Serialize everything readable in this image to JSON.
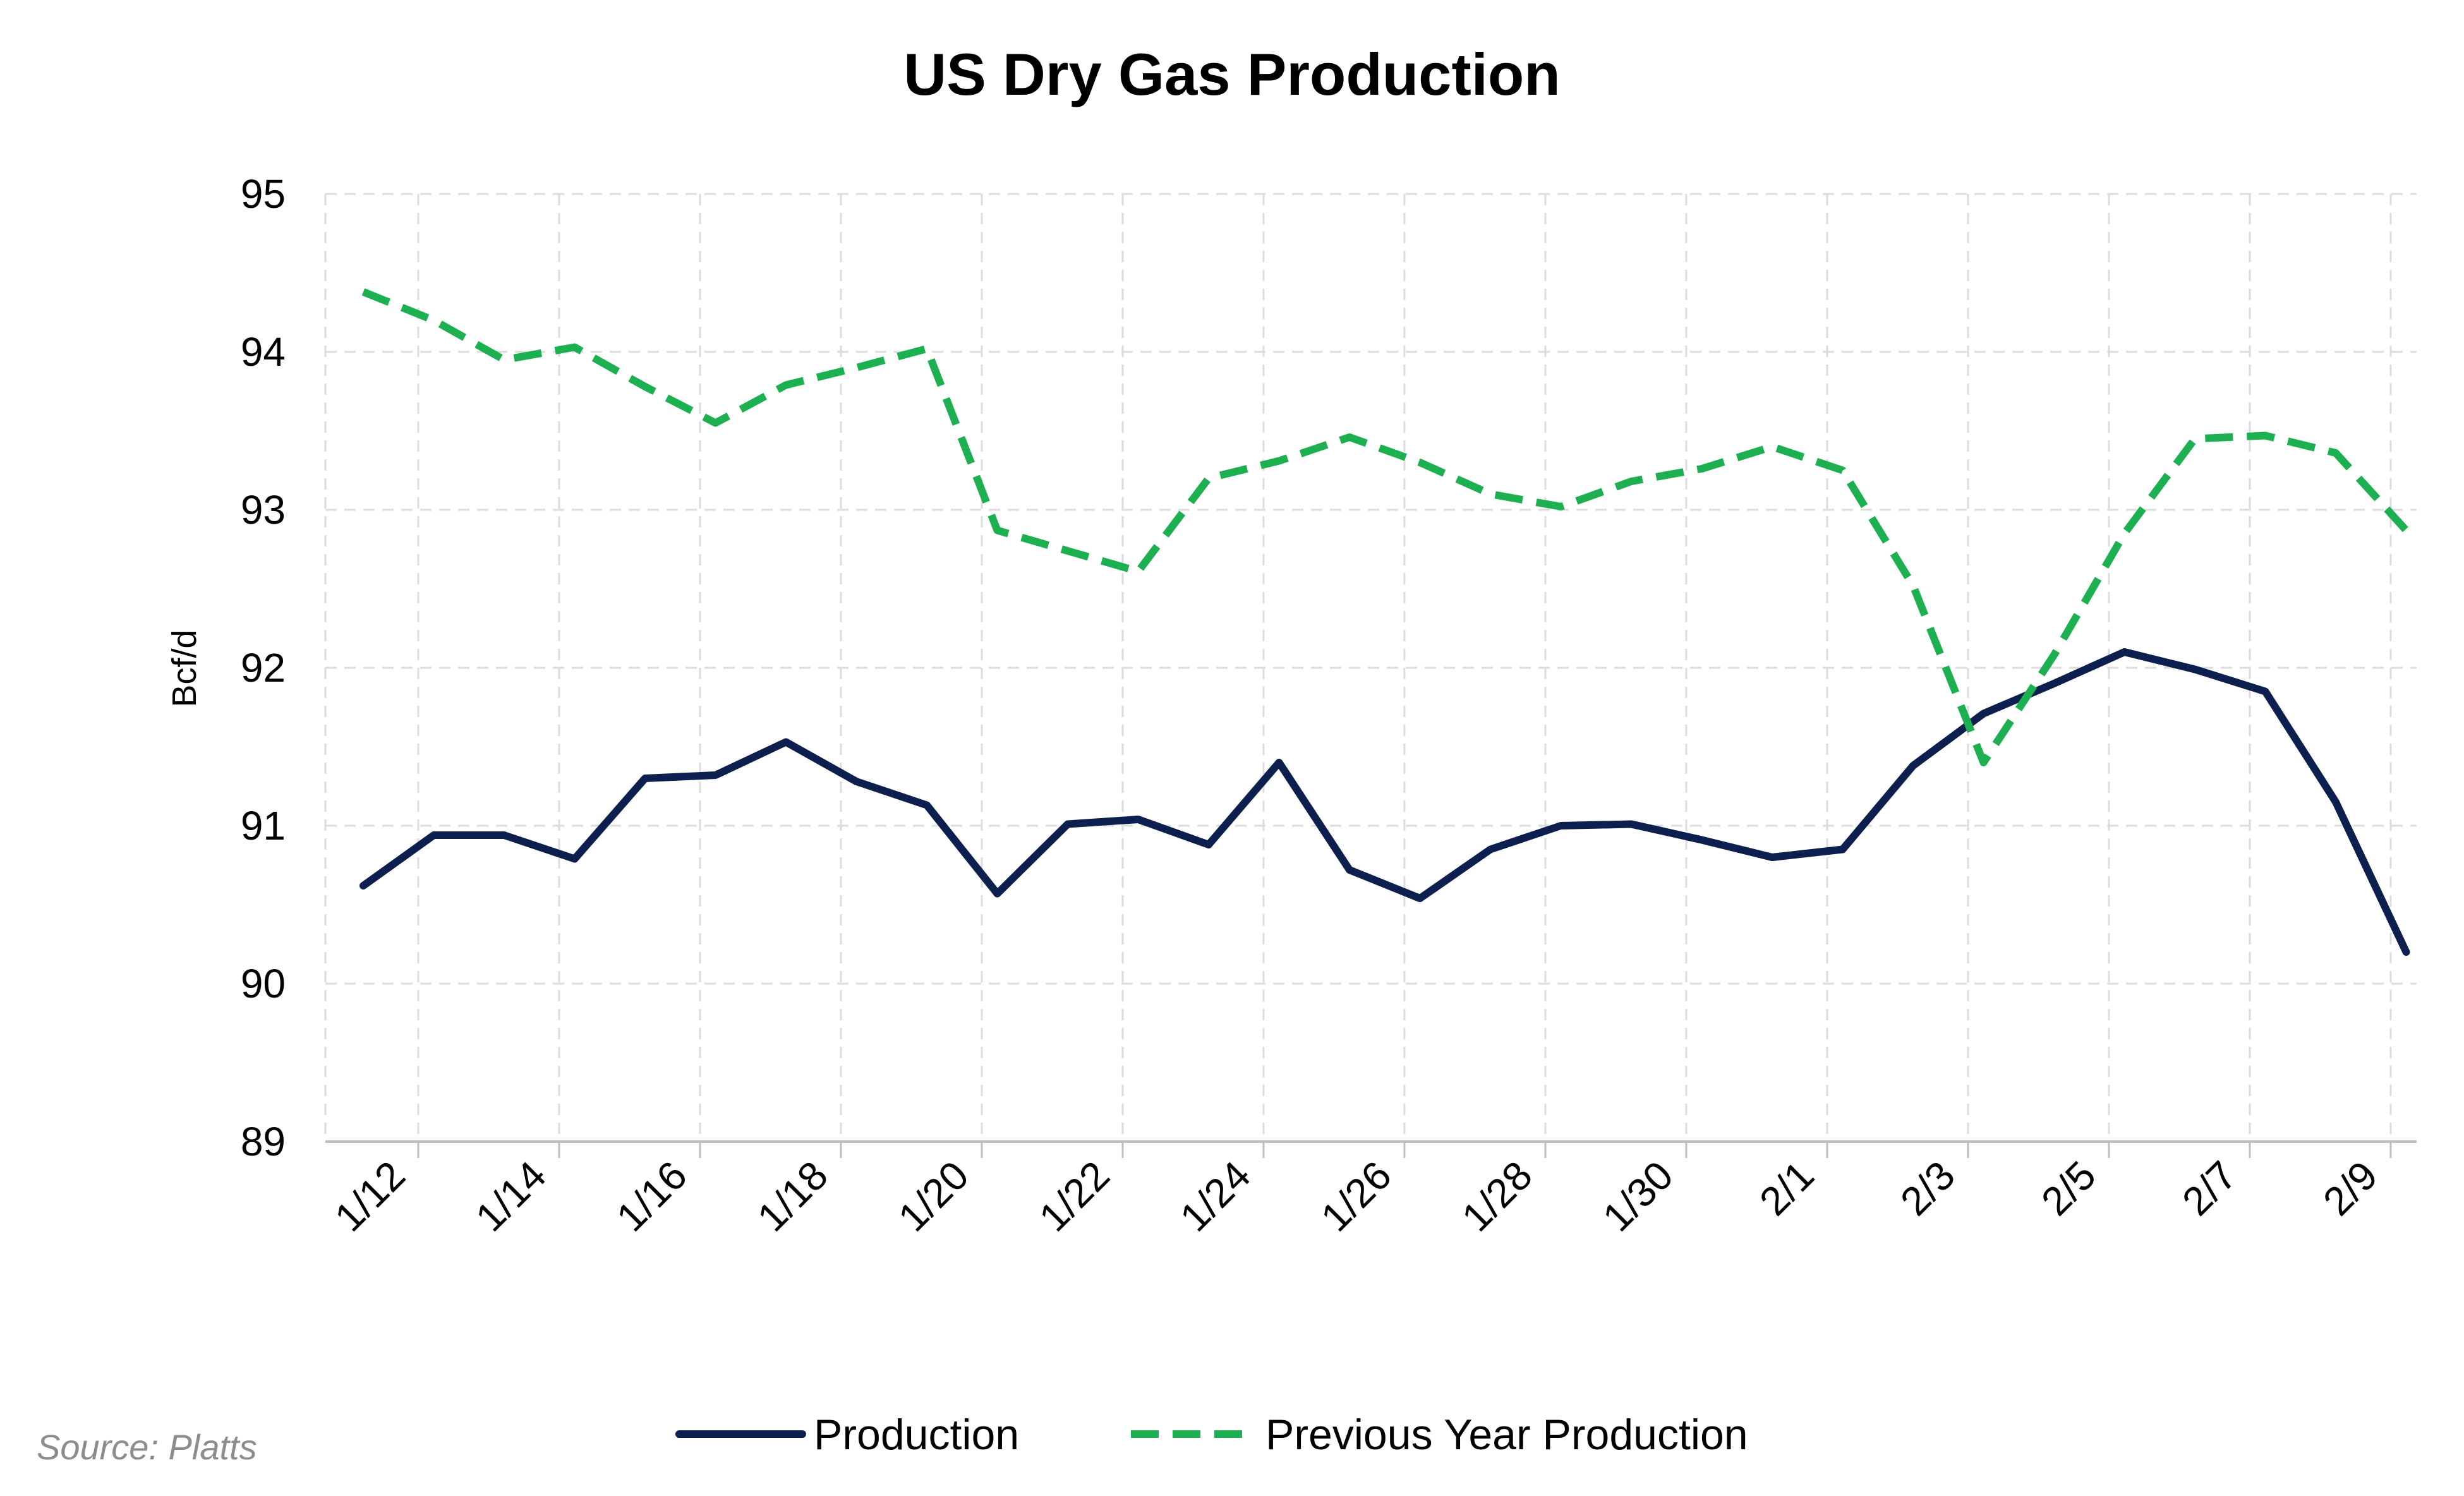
{
  "chart_data": {
    "type": "line",
    "title": "US Dry Gas Production",
    "ylabel": "Bcf/d",
    "xlabel": "",
    "ylim": [
      89,
      95
    ],
    "yticks": [
      89,
      90,
      91,
      92,
      93,
      94,
      95
    ],
    "categories": [
      "1/12",
      "1/13",
      "1/14",
      "1/15",
      "1/16",
      "1/17",
      "1/18",
      "1/19",
      "1/20",
      "1/21",
      "1/22",
      "1/23",
      "1/24",
      "1/25",
      "1/26",
      "1/27",
      "1/28",
      "1/29",
      "1/30",
      "1/31",
      "2/1",
      "2/2",
      "2/3",
      "2/4",
      "2/5",
      "2/6",
      "2/7",
      "2/8",
      "2/9",
      "2/10"
    ],
    "x_tick_labels": [
      "1/12",
      "1/14",
      "1/16",
      "1/18",
      "1/20",
      "1/22",
      "1/24",
      "1/26",
      "1/28",
      "1/30",
      "2/1",
      "2/3",
      "2/5",
      "2/7",
      "2/9"
    ],
    "grid": true,
    "legend_position": "bottom",
    "series": [
      {
        "name": "Production",
        "color": "#0d1f4f",
        "style": "solid",
        "values": [
          90.62,
          90.94,
          90.94,
          90.79,
          91.3,
          91.32,
          91.53,
          91.28,
          91.13,
          90.57,
          91.01,
          91.04,
          90.88,
          91.4,
          90.72,
          90.54,
          90.85,
          91.0,
          91.01,
          90.91,
          90.8,
          90.85,
          91.38,
          91.71,
          91.9,
          92.1,
          91.99,
          91.85,
          91.15,
          90.2
        ]
      },
      {
        "name": "Previous Year Production",
        "color": "#1db050",
        "style": "dashed",
        "values": [
          94.38,
          94.2,
          93.95,
          94.03,
          93.78,
          93.55,
          93.79,
          93.9,
          94.02,
          92.87,
          92.74,
          92.61,
          93.2,
          93.31,
          93.46,
          93.3,
          93.1,
          93.02,
          93.18,
          93.26,
          93.4,
          93.25,
          92.52,
          91.4,
          92.08,
          92.85,
          93.45,
          93.47,
          93.36,
          92.87
        ]
      }
    ]
  },
  "source": "Source: Platts"
}
